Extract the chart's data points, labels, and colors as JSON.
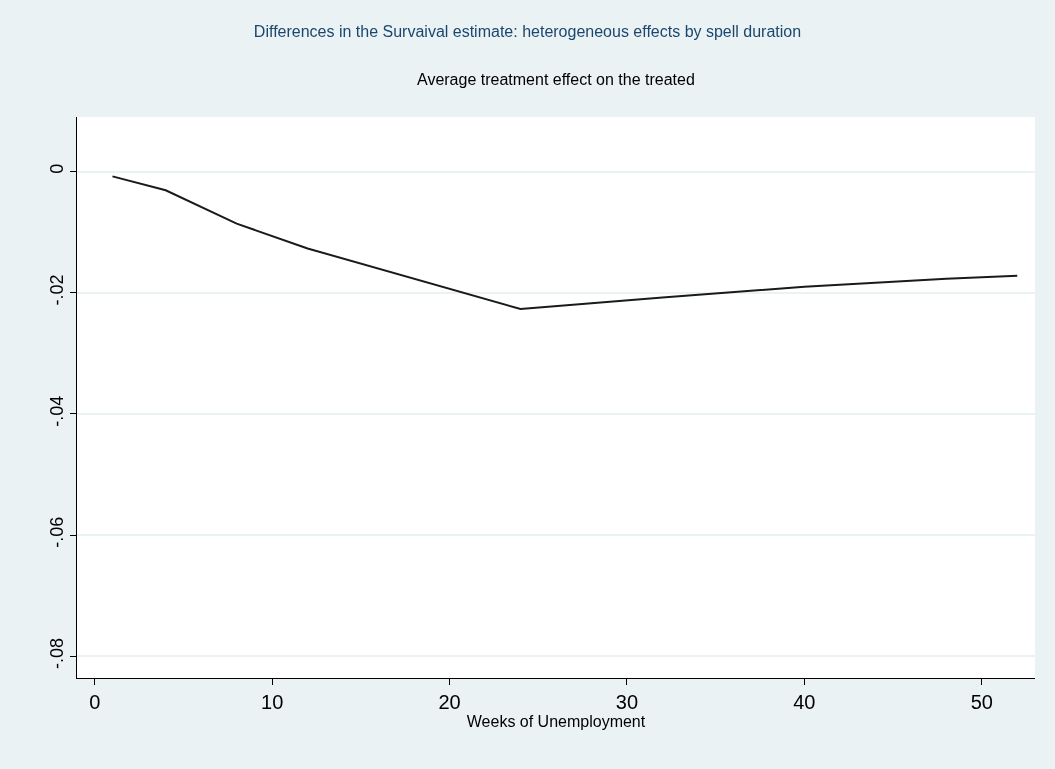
{
  "chart_data": {
    "type": "line",
    "title": "Differences in the Survaival estimate: heterogeneous effects by spell duration",
    "subtitle": "Average treatment effect on the treated",
    "xlabel": "Weeks of Unemployment",
    "x": [
      1,
      4,
      8,
      12,
      24,
      32,
      40,
      48,
      52
    ],
    "series": [
      {
        "color": "#1a1a1a",
        "values": [
          -0.0008,
          -0.0031,
          -0.0086,
          -0.0127,
          -0.0227,
          -0.0208,
          -0.019,
          -0.0177,
          -0.0172
        ]
      }
    ],
    "xlim": [
      -1,
      53
    ],
    "xticks": [
      0,
      10,
      20,
      30,
      40,
      50
    ],
    "ylim": [
      -0.0836,
      0.009
    ],
    "yticks": [
      {
        "value": -0.08,
        "label": "-.08"
      },
      {
        "value": -0.06,
        "label": "-.06"
      },
      {
        "value": -0.04,
        "label": "-.04"
      },
      {
        "value": -0.02,
        "label": "-.02"
      },
      {
        "value": 0,
        "label": "0"
      }
    ],
    "grid": "y",
    "legend": false,
    "marker": "none",
    "line_style": "solid"
  }
}
